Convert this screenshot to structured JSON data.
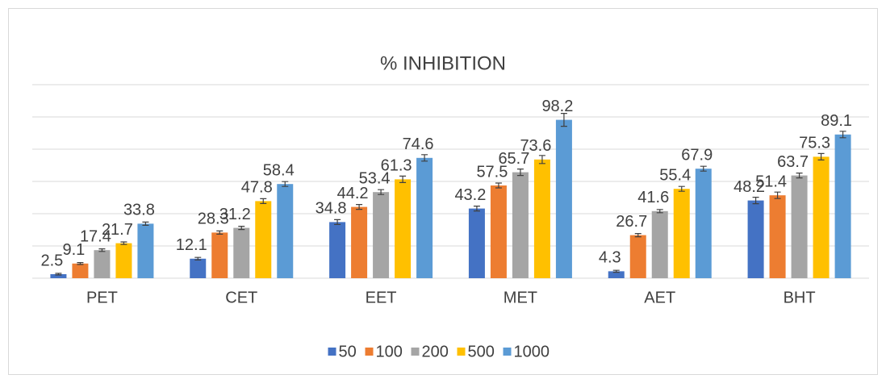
{
  "chart_data": {
    "type": "bar",
    "title": "% INHIBITION",
    "categories": [
      "PET",
      "CET",
      "EET",
      "MET",
      "AET",
      "BHT"
    ],
    "series": [
      {
        "name": "50",
        "color": "#4472c4",
        "values": [
          2.5,
          12.1,
          34.8,
          43.2,
          4.3,
          48.2
        ],
        "errors": [
          0.5,
          0.8,
          1.5,
          1.5,
          0.6,
          2
        ]
      },
      {
        "name": "100",
        "color": "#ed7d31",
        "values": [
          9.1,
          28.3,
          44.2,
          57.5,
          26.7,
          51.4
        ],
        "errors": [
          0.6,
          1,
          1.5,
          1.5,
          1,
          2
        ]
      },
      {
        "name": "200",
        "color": "#a5a5a5",
        "values": [
          17.4,
          31.2,
          53.4,
          65.7,
          41.6,
          63.7
        ],
        "errors": [
          0.8,
          1,
          1.5,
          2,
          1,
          1.5
        ]
      },
      {
        "name": "500",
        "color": "#ffc000",
        "values": [
          21.7,
          47.8,
          61.3,
          73.6,
          55.4,
          75.3
        ],
        "errors": [
          0.8,
          1.5,
          2,
          2.5,
          1.5,
          2
        ]
      },
      {
        "name": "1000",
        "color": "#5b9bd5",
        "values": [
          33.8,
          58.4,
          74.6,
          98.2,
          67.9,
          89.1
        ],
        "errors": [
          1,
          1.5,
          2,
          4,
          1.5,
          2
        ]
      }
    ],
    "ylim": [
      0,
      120
    ],
    "yticks": [
      0,
      20,
      40,
      60,
      80,
      100,
      120
    ],
    "grid": true,
    "legend": "bottom"
  }
}
